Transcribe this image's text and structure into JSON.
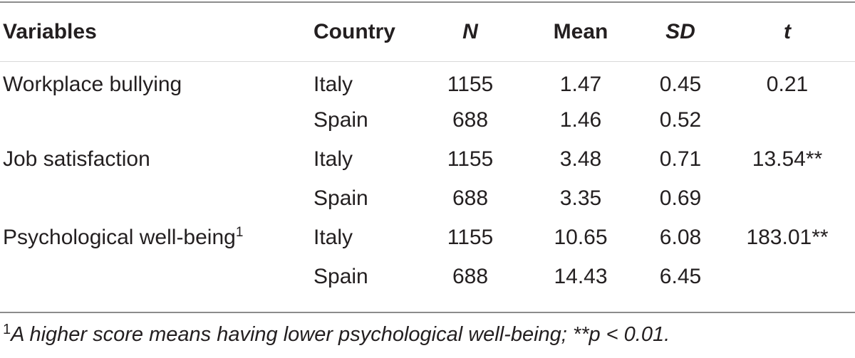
{
  "table": {
    "headers": {
      "variables": "Variables",
      "country": "Country",
      "n": "N",
      "mean": "Mean",
      "sd": "SD",
      "t": "t"
    },
    "rows": [
      {
        "variable": "Workplace bullying",
        "variable_sup": "",
        "country": "Italy",
        "n": "1155",
        "mean": "1.47",
        "sd": "0.45",
        "t": "0.21"
      },
      {
        "variable": "",
        "variable_sup": "",
        "country": "Spain",
        "n": "688",
        "mean": "1.46",
        "sd": "0.52",
        "t": ""
      },
      {
        "variable": "Job satisfaction",
        "variable_sup": "",
        "country": "Italy",
        "n": "1155",
        "mean": "3.48",
        "sd": "0.71",
        "t": "13.54**"
      },
      {
        "variable": "",
        "variable_sup": "",
        "country": "Spain",
        "n": "688",
        "mean": "3.35",
        "sd": "0.69",
        "t": ""
      },
      {
        "variable": "Psychological well-being",
        "variable_sup": "1",
        "country": "Italy",
        "n": "1155",
        "mean": "10.65",
        "sd": "6.08",
        "t": "183.01**"
      },
      {
        "variable": "",
        "variable_sup": "",
        "country": "Spain",
        "n": "688",
        "mean": "14.43",
        "sd": "6.45",
        "t": ""
      }
    ]
  },
  "footnote": {
    "marker": "1",
    "text": "A higher score means having lower psychological well-being; **p < 0.01."
  }
}
